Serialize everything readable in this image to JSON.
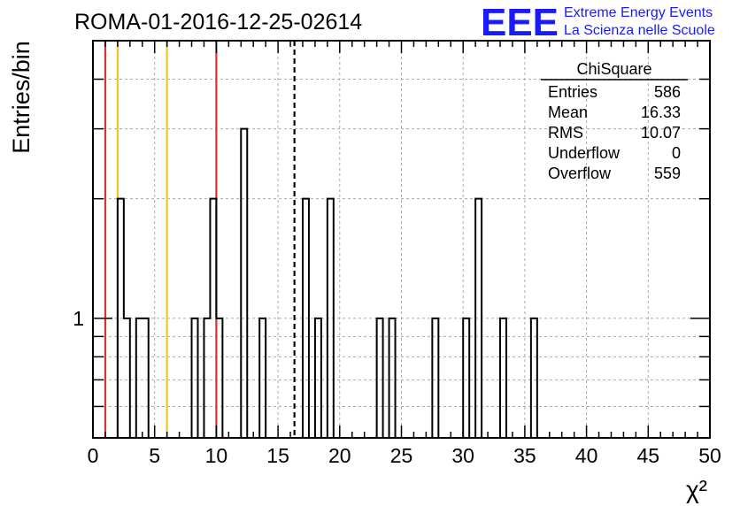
{
  "title": "ROMA-01-2016-12-25-02614",
  "logo": {
    "mark": "EEE",
    "line1": "Extreme Energy Events",
    "line2": "La Scienza nelle Scuole",
    "color": "#1a1aff"
  },
  "stats_box": {
    "title": "ChiSquare",
    "rows": [
      {
        "label": "Entries",
        "value": "586"
      },
      {
        "label": "Mean",
        "value": "16.33"
      },
      {
        "label": "RMS",
        "value": "10.07"
      },
      {
        "label": "Underflow",
        "value": "0"
      },
      {
        "label": "Overflow",
        "value": "559"
      }
    ]
  },
  "chart_data": {
    "type": "bar",
    "histogram": true,
    "title": "ROMA-01-2016-12-25-02614",
    "xlabel": "χ²",
    "ylabel": "Entries/bin",
    "xlim": [
      0,
      50
    ],
    "ylim": [
      0.5,
      5
    ],
    "yscale": "log",
    "grid": true,
    "bin_width": 0.5,
    "xticks": [
      0,
      5,
      10,
      15,
      20,
      25,
      30,
      35,
      40,
      45,
      50
    ],
    "yticks_labeled": [
      1
    ],
    "bins": [
      {
        "x": 2.0,
        "value": 2
      },
      {
        "x": 2.5,
        "value": 1
      },
      {
        "x": 3.5,
        "value": 1
      },
      {
        "x": 4.0,
        "value": 1
      },
      {
        "x": 8.0,
        "value": 1
      },
      {
        "x": 9.0,
        "value": 1
      },
      {
        "x": 9.5,
        "value": 2
      },
      {
        "x": 10.0,
        "value": 1
      },
      {
        "x": 12.0,
        "value": 3
      },
      {
        "x": 13.5,
        "value": 1
      },
      {
        "x": 17.0,
        "value": 2
      },
      {
        "x": 18.0,
        "value": 1
      },
      {
        "x": 19.0,
        "value": 2
      },
      {
        "x": 23.0,
        "value": 1
      },
      {
        "x": 24.0,
        "value": 1
      },
      {
        "x": 27.5,
        "value": 1
      },
      {
        "x": 30.0,
        "value": 1
      },
      {
        "x": 31.0,
        "value": 2
      },
      {
        "x": 33.0,
        "value": 1
      },
      {
        "x": 35.5,
        "value": 1
      }
    ],
    "vertical_lines": [
      {
        "x": 1.0,
        "color": "#e03030",
        "style": "solid"
      },
      {
        "x": 2.0,
        "color": "#f5c518",
        "style": "solid"
      },
      {
        "x": 6.0,
        "color": "#f5c518",
        "style": "solid"
      },
      {
        "x": 10.0,
        "color": "#e03030",
        "style": "solid"
      },
      {
        "x": 16.33,
        "color": "#000000",
        "style": "dashed"
      }
    ]
  }
}
